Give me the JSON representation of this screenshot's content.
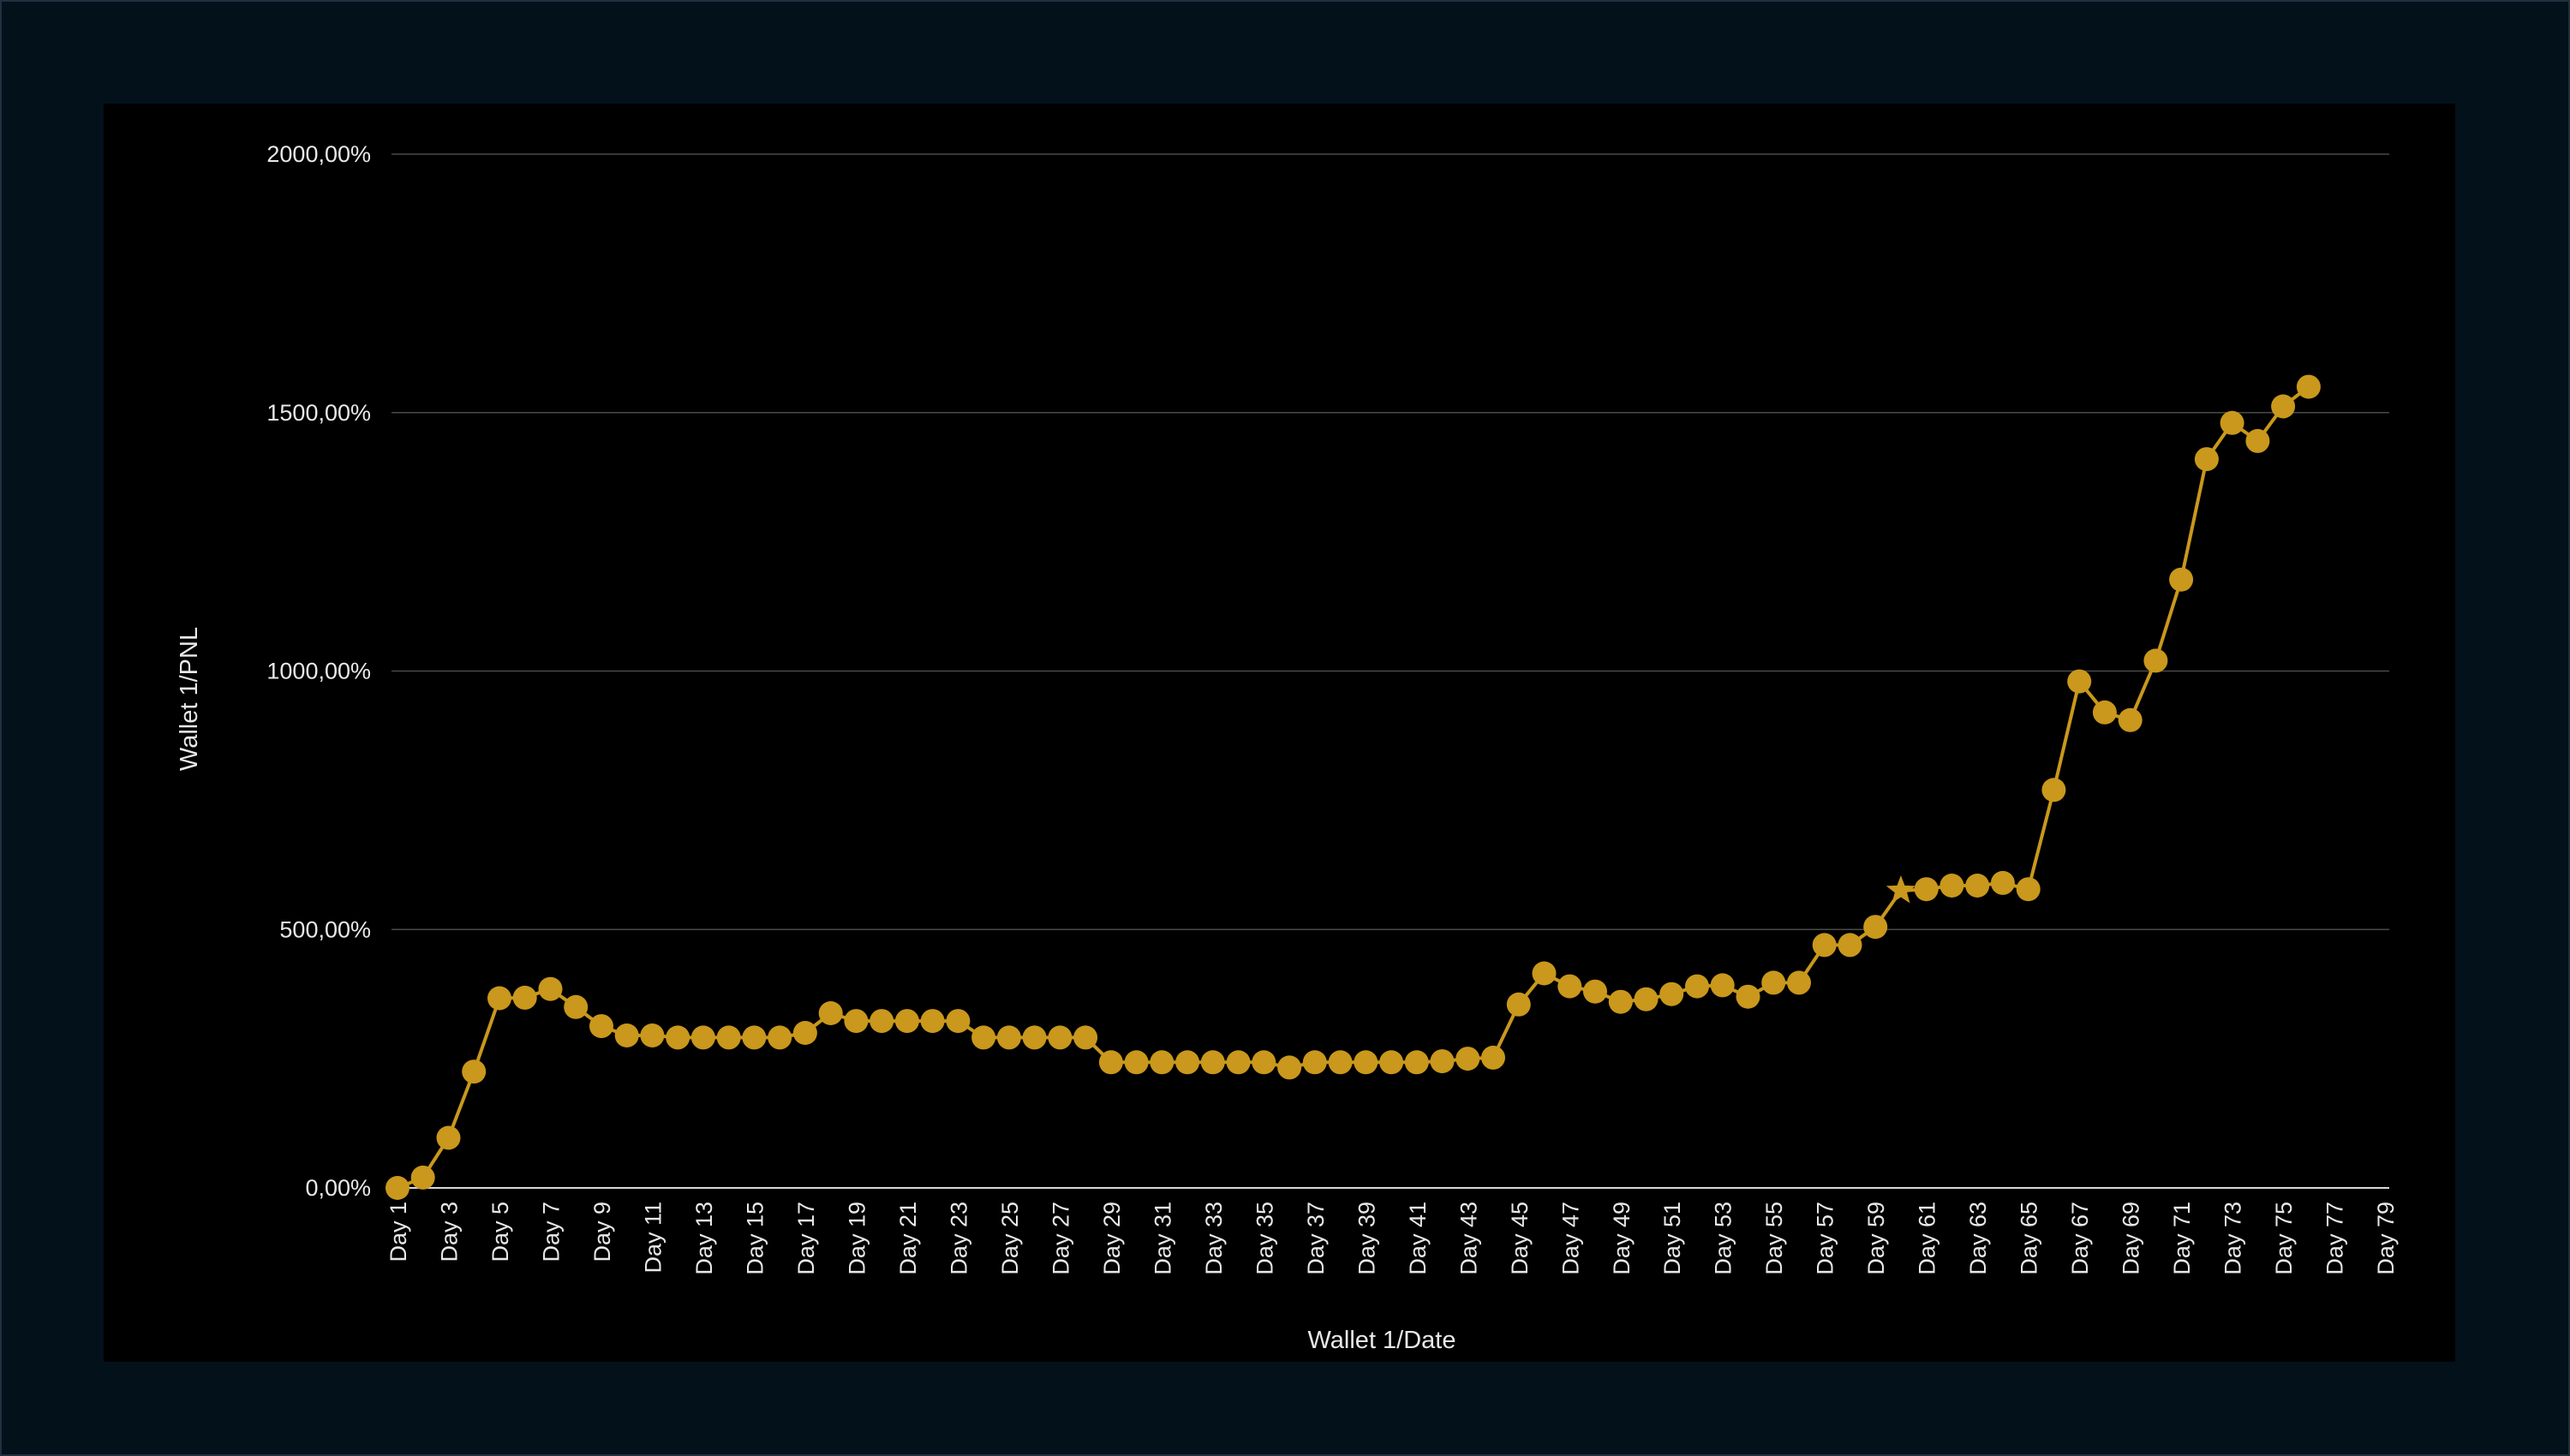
{
  "colors": {
    "page_background": "#03111b",
    "chart_background": "#000000",
    "series": "#c9981c",
    "text": "#e8e8e8",
    "grid": "#4a4a4a"
  },
  "chart_data": {
    "type": "line",
    "title": "",
    "xlabel": "Wallet 1/Date",
    "ylabel": "Wallet 1/PNL",
    "ylim": [
      0,
      2000
    ],
    "y_ticks": [
      "0,00%",
      "500,00%",
      "1000,00%",
      "1500,00%",
      "2000,00%"
    ],
    "y_tick_values": [
      0,
      500,
      1000,
      1500,
      2000
    ],
    "grid": true,
    "legend": "none",
    "x_tick_labels": [
      "Day 1",
      "Day 3",
      "Day 5",
      "Day 7",
      "Day 9",
      "Day 11",
      "Day 13",
      "Day 15",
      "Day 17",
      "Day 19",
      "Day 21",
      "Day 23",
      "Day 25",
      "Day 27",
      "Day 29",
      "Day 31",
      "Day 33",
      "Day 35",
      "Day 37",
      "Day 39",
      "Day 41",
      "Day 43",
      "Day 45",
      "Day 47",
      "Day 49",
      "Day 51",
      "Day 53",
      "Day 55",
      "Day 57",
      "Day 59",
      "Day 61",
      "Day 63",
      "Day 65",
      "Day 67",
      "Day 69",
      "Day 71",
      "Day 73",
      "Day 75",
      "Day 77",
      "Day 79"
    ],
    "x_count": 79,
    "series": [
      {
        "marker": "circle",
        "star_point_day": 60,
        "x": [
          "Day 1",
          "Day 2",
          "Day 3",
          "Day 4",
          "Day 5",
          "Day 6",
          "Day 7",
          "Day 8",
          "Day 9",
          "Day 10",
          "Day 11",
          "Day 12",
          "Day 13",
          "Day 14",
          "Day 15",
          "Day 16",
          "Day 17",
          "Day 18",
          "Day 19",
          "Day 20",
          "Day 21",
          "Day 22",
          "Day 23",
          "Day 24",
          "Day 25",
          "Day 26",
          "Day 27",
          "Day 28",
          "Day 29",
          "Day 30",
          "Day 31",
          "Day 32",
          "Day 33",
          "Day 34",
          "Day 35",
          "Day 36",
          "Day 37",
          "Day 38",
          "Day 39",
          "Day 40",
          "Day 41",
          "Day 42",
          "Day 43",
          "Day 44",
          "Day 45",
          "Day 46",
          "Day 47",
          "Day 48",
          "Day 49",
          "Day 50",
          "Day 51",
          "Day 52",
          "Day 53",
          "Day 54",
          "Day 55",
          "Day 56",
          "Day 57",
          "Day 58",
          "Day 59",
          "Day 60",
          "Day 61",
          "Day 62",
          "Day 63",
          "Day 64",
          "Day 65",
          "Day 66",
          "Day 67",
          "Day 68",
          "Day 69",
          "Day 70",
          "Day 71",
          "Day 72",
          "Day 73",
          "Day 74",
          "Day 75",
          "Day 76"
        ],
        "values": [
          0,
          20,
          97,
          225,
          367,
          368,
          385,
          350,
          313,
          295,
          295,
          291,
          291,
          291,
          291,
          291,
          300,
          338,
          323,
          323,
          323,
          323,
          323,
          291,
          291,
          291,
          291,
          291,
          243,
          243,
          243,
          243,
          243,
          243,
          243,
          233,
          243,
          243,
          243,
          243,
          243,
          245,
          250,
          252,
          355,
          415,
          390,
          380,
          360,
          365,
          375,
          390,
          392,
          370,
          397,
          397,
          470,
          470,
          505,
          575,
          578,
          585,
          585,
          590,
          578,
          770,
          980,
          920,
          905,
          1020,
          1177,
          1410,
          1480,
          1445,
          1512,
          1550
        ]
      }
    ]
  }
}
